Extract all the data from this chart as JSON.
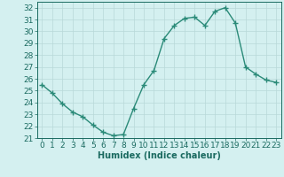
{
  "x": [
    0,
    1,
    2,
    3,
    4,
    5,
    6,
    7,
    8,
    9,
    10,
    11,
    12,
    13,
    14,
    15,
    16,
    17,
    18,
    19,
    20,
    21,
    22,
    23
  ],
  "y": [
    25.5,
    24.8,
    23.9,
    23.2,
    22.8,
    22.1,
    21.5,
    21.2,
    21.3,
    23.5,
    25.5,
    26.7,
    29.4,
    30.5,
    31.1,
    31.2,
    30.5,
    31.7,
    32.0,
    30.7,
    27.0,
    26.4,
    25.9,
    25.7
  ],
  "line_color": "#2a8a78",
  "marker": "+",
  "marker_size": 4,
  "bg_color": "#d4f0f0",
  "grid_color": "#b8d8d8",
  "axis_color": "#1a6a60",
  "xlabel": "Humidex (Indice chaleur)",
  "xlim": [
    -0.5,
    23.5
  ],
  "ylim": [
    21,
    32.5
  ],
  "yticks": [
    21,
    22,
    23,
    24,
    25,
    26,
    27,
    28,
    29,
    30,
    31,
    32
  ],
  "xticks": [
    0,
    1,
    2,
    3,
    4,
    5,
    6,
    7,
    8,
    9,
    10,
    11,
    12,
    13,
    14,
    15,
    16,
    17,
    18,
    19,
    20,
    21,
    22,
    23
  ],
  "xlabel_fontsize": 7,
  "tick_fontsize": 6.5,
  "linewidth": 1.0,
  "marker_size_pts": 4.5
}
